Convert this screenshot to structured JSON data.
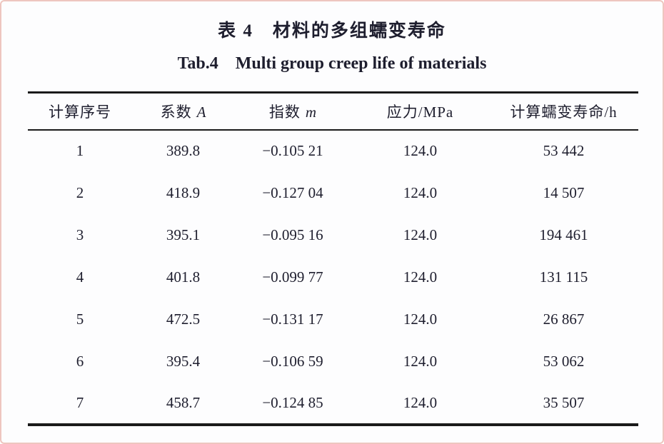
{
  "caption": {
    "zh": "表 4　材料的多组蠕变寿命",
    "en": "Tab.4　Multi group creep life of materials"
  },
  "table": {
    "columns": [
      {
        "label": "计算序号"
      },
      {
        "label": "系数",
        "symbol": "A"
      },
      {
        "label": "指数",
        "symbol": "m"
      },
      {
        "label": "应力/MPa"
      },
      {
        "label": "计算蠕变寿命/h"
      }
    ],
    "rows": [
      [
        "1",
        "389.8",
        "−0.105 21",
        "124.0",
        "53 442"
      ],
      [
        "2",
        "418.9",
        "−0.127 04",
        "124.0",
        "14 507"
      ],
      [
        "3",
        "395.1",
        "−0.095 16",
        "124.0",
        "194 461"
      ],
      [
        "4",
        "401.8",
        "−0.099 77",
        "124.0",
        "131 115"
      ],
      [
        "5",
        "472.5",
        "−0.131 17",
        "124.0",
        "26 867"
      ],
      [
        "6",
        "395.4",
        "−0.106 59",
        "124.0",
        "53 062"
      ],
      [
        "7",
        "458.7",
        "−0.124 85",
        "124.0",
        "35 507"
      ]
    ]
  },
  "colors": {
    "text": "#1e1e2e",
    "rule": "#1a1a1a",
    "page_border": "#eec6bf",
    "background": "#fdfdfe"
  }
}
